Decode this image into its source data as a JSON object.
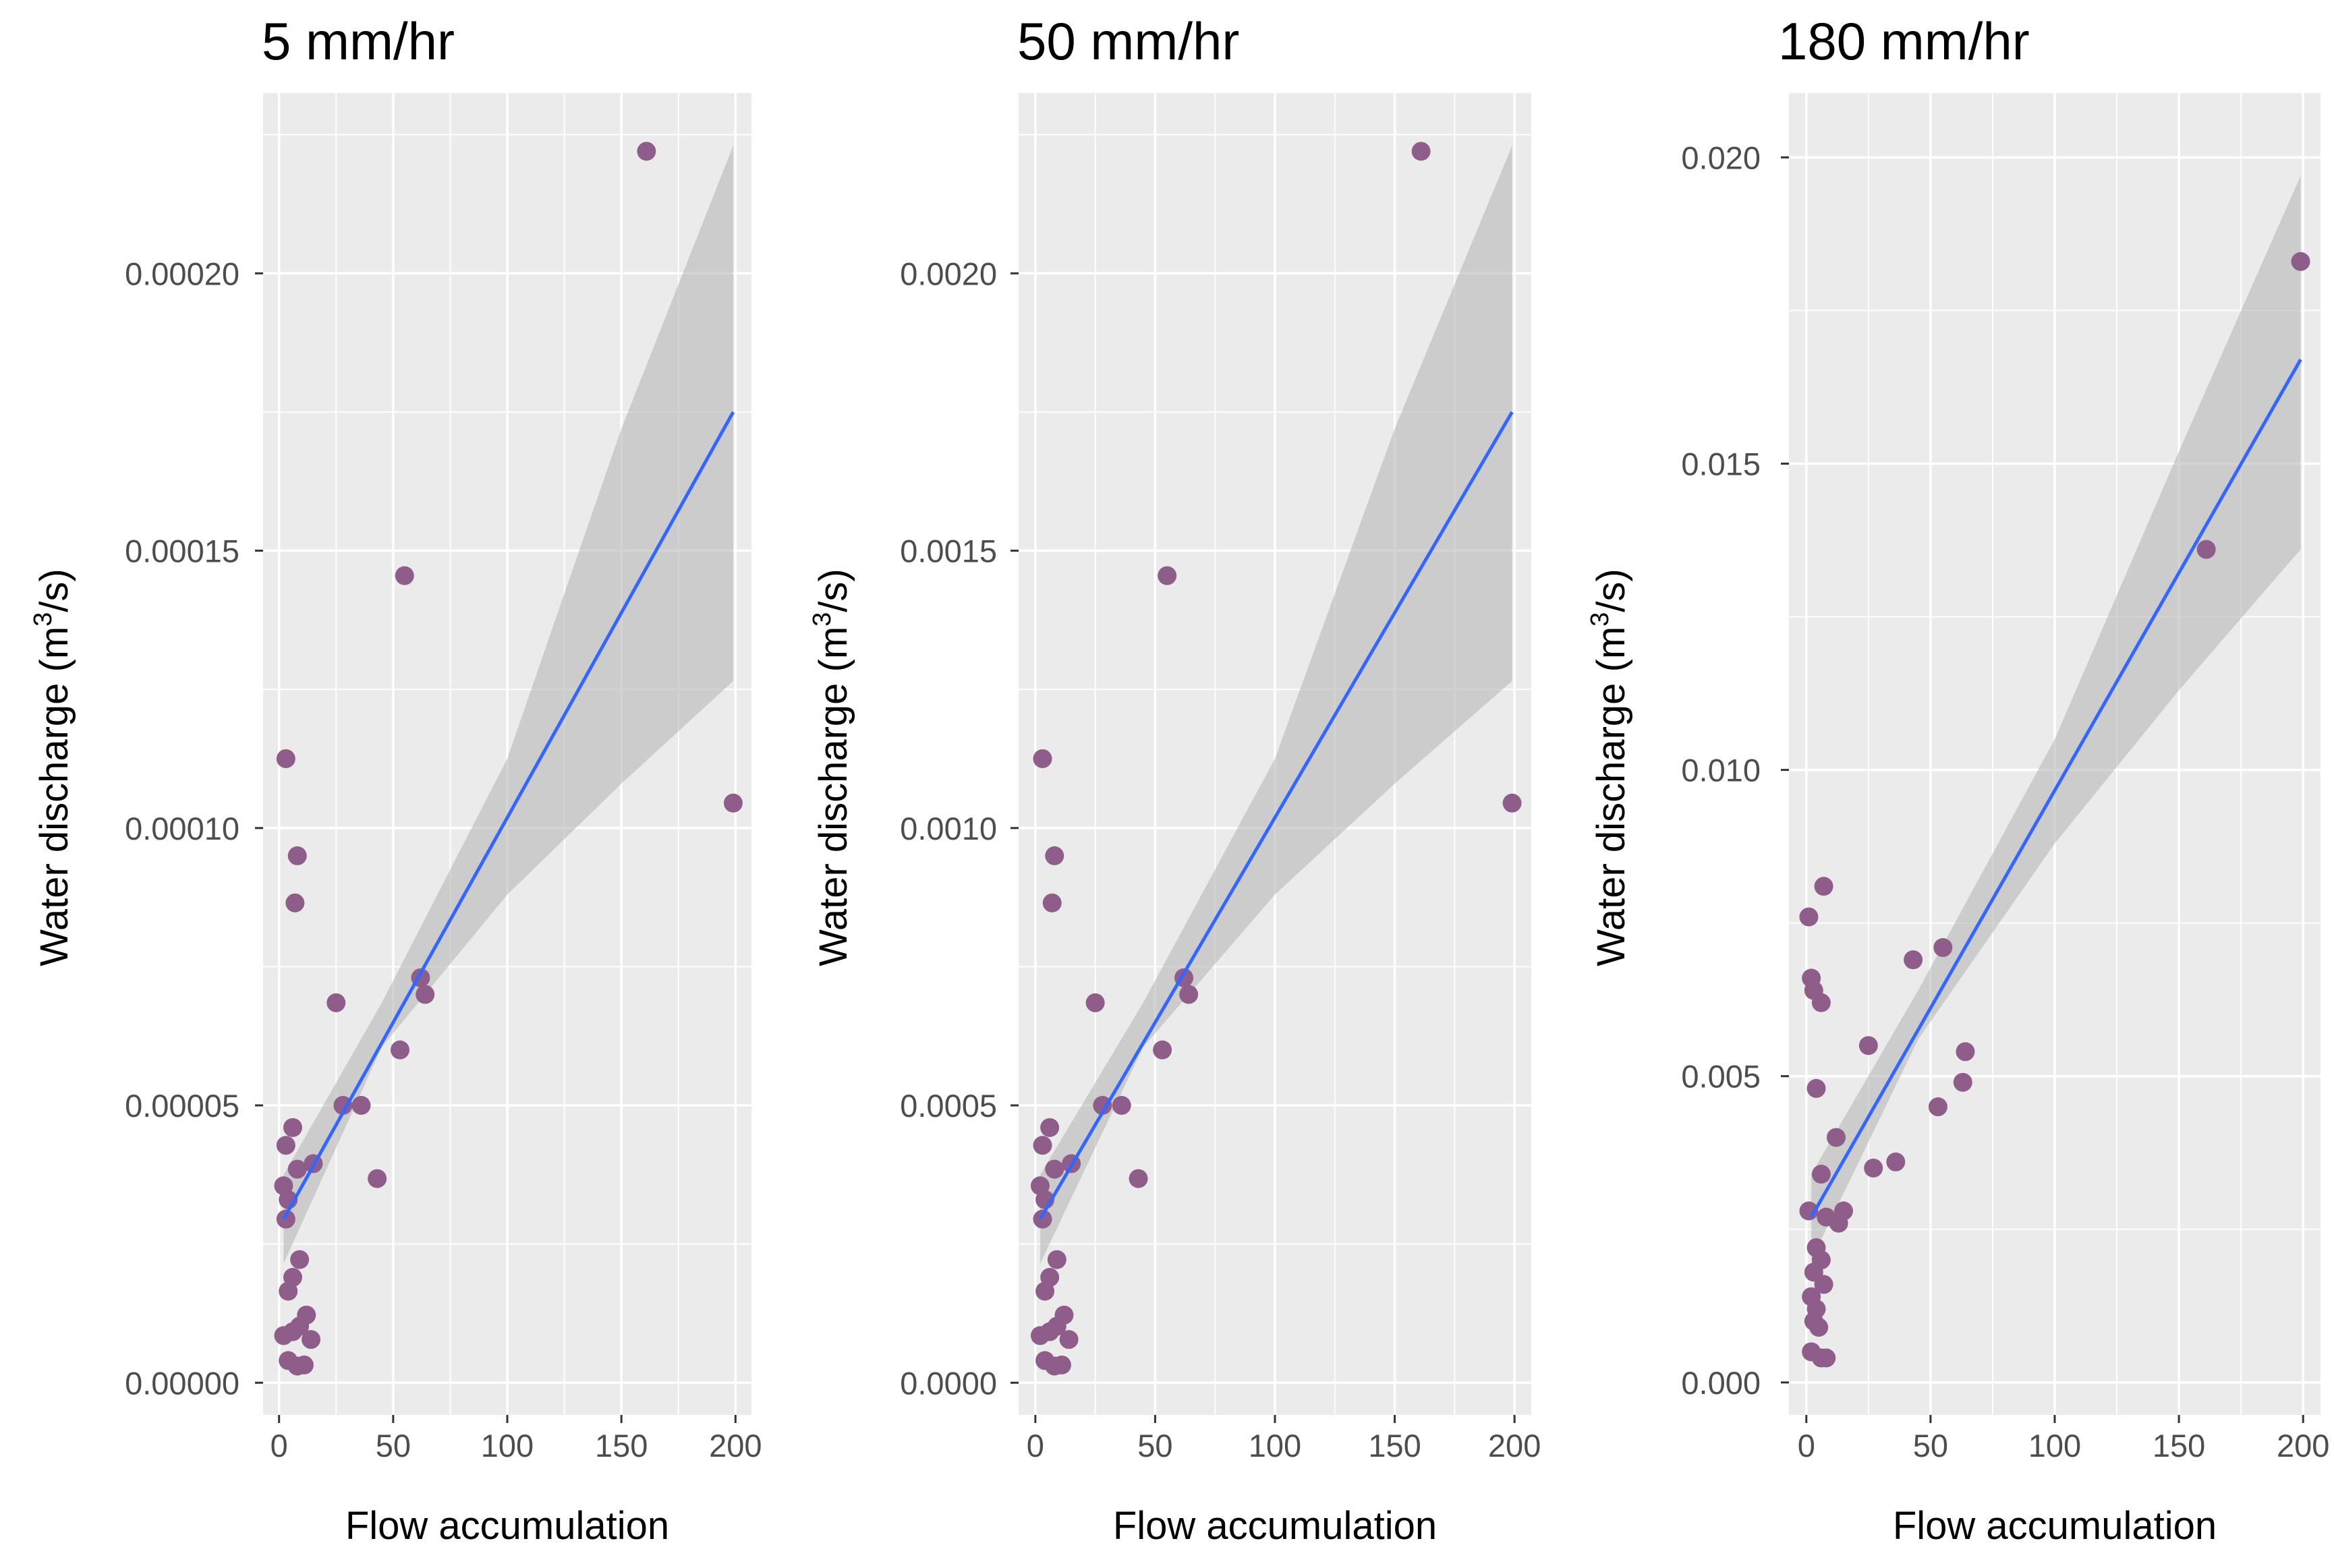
{
  "colors": {
    "panel_background": "#ebebeb",
    "point": "#8f5d8a",
    "fit_line": "#3366ff",
    "ribbon": "#b8b8b8"
  },
  "chart_data": [
    {
      "type": "scatter",
      "title": "5 mm/hr",
      "xlabel": "Flow accumulation",
      "ylabel_main": "Water discharge (m",
      "ylabel_sup": "3",
      "ylabel_end": "/s)",
      "xlim": [
        -7,
        207
      ],
      "ylim": [
        -5.8e-06,
        0.0002325
      ],
      "xticks": [
        0,
        50,
        100,
        150,
        200
      ],
      "xtick_labels": [
        "0",
        "50",
        "100",
        "150",
        "200"
      ],
      "yticks": [
        0,
        5e-05,
        0.0001,
        0.00015,
        0.0002
      ],
      "ytick_labels": [
        "0.00000",
        "0.00005",
        "0.00010",
        "0.00015",
        "0.00020"
      ],
      "fit": {
        "x": [
          2,
          199
        ],
        "y": [
          2.95e-05,
          0.000175
        ]
      },
      "ribbon": {
        "x": [
          2,
          45,
          100,
          150,
          199
        ],
        "lower": [
          2.15e-05,
          6.05e-05,
          8.8e-05,
          0.000108,
          0.0001265
        ],
        "upper": [
          3.75e-05,
          6.85e-05,
          0.0001125,
          0.000172,
          0.000223
        ]
      },
      "points": [
        {
          "x": 3,
          "y": 0.0001125
        },
        {
          "x": 8,
          "y": 9.5e-05
        },
        {
          "x": 7,
          "y": 8.65e-05
        },
        {
          "x": 161,
          "y": 0.000222
        },
        {
          "x": 55,
          "y": 0.0001455
        },
        {
          "x": 199,
          "y": 0.0001045
        },
        {
          "x": 25,
          "y": 6.85e-05
        },
        {
          "x": 62,
          "y": 7.3e-05
        },
        {
          "x": 64,
          "y": 7e-05
        },
        {
          "x": 53,
          "y": 6e-05
        },
        {
          "x": 28,
          "y": 5e-05
        },
        {
          "x": 36,
          "y": 5e-05
        },
        {
          "x": 43,
          "y": 3.68e-05
        },
        {
          "x": 6,
          "y": 4.6e-05
        },
        {
          "x": 3,
          "y": 4.28e-05
        },
        {
          "x": 8,
          "y": 3.85e-05
        },
        {
          "x": 15,
          "y": 3.95e-05
        },
        {
          "x": 2,
          "y": 3.55e-05
        },
        {
          "x": 4,
          "y": 3.3e-05
        },
        {
          "x": 3,
          "y": 2.95e-05
        },
        {
          "x": 9,
          "y": 2.22e-05
        },
        {
          "x": 6,
          "y": 1.9e-05
        },
        {
          "x": 4,
          "y": 1.65e-05
        },
        {
          "x": 12,
          "y": 1.22e-05
        },
        {
          "x": 9,
          "y": 1.02e-05
        },
        {
          "x": 6,
          "y": 9.2e-06
        },
        {
          "x": 2,
          "y": 8.5e-06
        },
        {
          "x": 14,
          "y": 7.8e-06
        },
        {
          "x": 4,
          "y": 4e-06
        },
        {
          "x": 8,
          "y": 3e-06
        },
        {
          "x": 11,
          "y": 3.2e-06
        }
      ]
    },
    {
      "type": "scatter",
      "title": "50 mm/hr",
      "xlabel": "Flow accumulation",
      "ylabel_main": "Water discharge (m",
      "ylabel_sup": "3",
      "ylabel_end": "/s)",
      "xlim": [
        -7,
        207
      ],
      "ylim": [
        -5.8e-05,
        0.002325
      ],
      "xticks": [
        0,
        50,
        100,
        150,
        200
      ],
      "xtick_labels": [
        "0",
        "50",
        "100",
        "150",
        "200"
      ],
      "yticks": [
        0,
        0.0005,
        0.001,
        0.0015,
        0.002
      ],
      "ytick_labels": [
        "0.0000",
        "0.0005",
        "0.0010",
        "0.0015",
        "0.0020"
      ],
      "fit": {
        "x": [
          2,
          199
        ],
        "y": [
          0.000295,
          0.00175
        ]
      },
      "ribbon": {
        "x": [
          2,
          45,
          100,
          150,
          199
        ],
        "lower": [
          0.000215,
          0.000605,
          0.00088,
          0.00108,
          0.001265
        ],
        "upper": [
          0.000375,
          0.000685,
          0.001125,
          0.00172,
          0.00223
        ]
      },
      "points": [
        {
          "x": 3,
          "y": 0.001125
        },
        {
          "x": 8,
          "y": 0.00095
        },
        {
          "x": 7,
          "y": 0.000865
        },
        {
          "x": 161,
          "y": 0.00222
        },
        {
          "x": 55,
          "y": 0.001455
        },
        {
          "x": 199,
          "y": 0.001045
        },
        {
          "x": 25,
          "y": 0.000685
        },
        {
          "x": 62,
          "y": 0.00073
        },
        {
          "x": 64,
          "y": 0.0007
        },
        {
          "x": 53,
          "y": 0.0006
        },
        {
          "x": 28,
          "y": 0.0005
        },
        {
          "x": 36,
          "y": 0.0005
        },
        {
          "x": 43,
          "y": 0.000368
        },
        {
          "x": 6,
          "y": 0.00046
        },
        {
          "x": 3,
          "y": 0.000428
        },
        {
          "x": 8,
          "y": 0.000385
        },
        {
          "x": 15,
          "y": 0.000395
        },
        {
          "x": 2,
          "y": 0.000355
        },
        {
          "x": 4,
          "y": 0.00033
        },
        {
          "x": 3,
          "y": 0.000295
        },
        {
          "x": 9,
          "y": 0.000222
        },
        {
          "x": 6,
          "y": 0.00019
        },
        {
          "x": 4,
          "y": 0.000165
        },
        {
          "x": 12,
          "y": 0.000122
        },
        {
          "x": 9,
          "y": 0.000102
        },
        {
          "x": 6,
          "y": 9.2e-05
        },
        {
          "x": 2,
          "y": 8.5e-05
        },
        {
          "x": 14,
          "y": 7.8e-05
        },
        {
          "x": 4,
          "y": 4e-05
        },
        {
          "x": 8,
          "y": 3e-05
        },
        {
          "x": 11,
          "y": 3.2e-05
        }
      ]
    },
    {
      "type": "scatter",
      "title": "180 mm/hr",
      "xlabel": "Flow accumulation",
      "ylabel_main": "Water discharge (m",
      "ylabel_sup": "3",
      "ylabel_end": "/s)",
      "xlim": [
        -7,
        207
      ],
      "ylim": [
        -0.00053,
        0.02105
      ],
      "xticks": [
        0,
        50,
        100,
        150,
        200
      ],
      "xtick_labels": [
        "0",
        "50",
        "100",
        "150",
        "200"
      ],
      "yticks": [
        0,
        0.005,
        0.01,
        0.015,
        0.02
      ],
      "ytick_labels": [
        "0.000",
        "0.005",
        "0.010",
        "0.015",
        "0.020"
      ],
      "fit": {
        "x": [
          2,
          199
        ],
        "y": [
          0.0027,
          0.0167
        ]
      },
      "ribbon": {
        "x": [
          2,
          45,
          100,
          150,
          199
        ],
        "lower": [
          0.002,
          0.0056,
          0.0088,
          0.0113,
          0.0136
        ],
        "upper": [
          0.0034,
          0.0064,
          0.0105,
          0.0152,
          0.0197
        ]
      },
      "points": [
        {
          "x": 7,
          "y": 0.0081
        },
        {
          "x": 1,
          "y": 0.0076
        },
        {
          "x": 55,
          "y": 0.0071
        },
        {
          "x": 43,
          "y": 0.0069
        },
        {
          "x": 2,
          "y": 0.0066
        },
        {
          "x": 3,
          "y": 0.0064
        },
        {
          "x": 6,
          "y": 0.0062
        },
        {
          "x": 25,
          "y": 0.0055
        },
        {
          "x": 64,
          "y": 0.0054
        },
        {
          "x": 63,
          "y": 0.0049
        },
        {
          "x": 4,
          "y": 0.0048
        },
        {
          "x": 53,
          "y": 0.0045
        },
        {
          "x": 12,
          "y": 0.004
        },
        {
          "x": 36,
          "y": 0.0036
        },
        {
          "x": 27,
          "y": 0.0035
        },
        {
          "x": 6,
          "y": 0.0034
        },
        {
          "x": 161,
          "y": 0.0136
        },
        {
          "x": 199,
          "y": 0.0183
        },
        {
          "x": 1,
          "y": 0.0028
        },
        {
          "x": 8,
          "y": 0.0027
        },
        {
          "x": 15,
          "y": 0.0028
        },
        {
          "x": 13,
          "y": 0.0026
        },
        {
          "x": 4,
          "y": 0.0022
        },
        {
          "x": 6,
          "y": 0.002
        },
        {
          "x": 3,
          "y": 0.0018
        },
        {
          "x": 7,
          "y": 0.0016
        },
        {
          "x": 2,
          "y": 0.0014
        },
        {
          "x": 4,
          "y": 0.0012
        },
        {
          "x": 3,
          "y": 0.001
        },
        {
          "x": 5,
          "y": 0.0009
        },
        {
          "x": 2,
          "y": 0.0005
        },
        {
          "x": 6,
          "y": 0.0004
        },
        {
          "x": 8,
          "y": 0.0004
        }
      ]
    }
  ]
}
